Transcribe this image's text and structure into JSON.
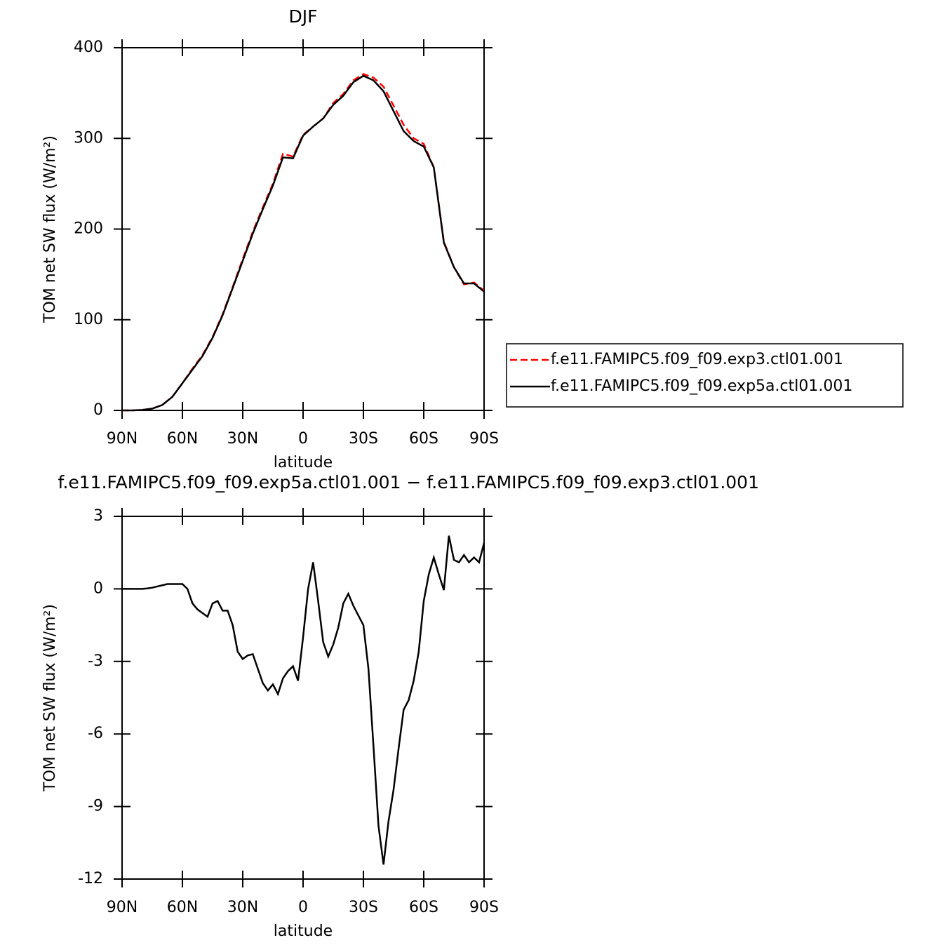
{
  "chart_data": [
    {
      "type": "line",
      "title": "DJF",
      "xlabel": "latitude",
      "ylabel": "TOM net SW flux (W/m²)",
      "xlim": [
        90,
        -90
      ],
      "xticks": [
        {
          "value": 90,
          "label": "90N"
        },
        {
          "value": 60,
          "label": "60N"
        },
        {
          "value": 30,
          "label": "30N"
        },
        0,
        {
          "value": -30,
          "label": "30S"
        },
        {
          "value": -60,
          "label": "60S"
        },
        {
          "value": -90,
          "label": "90S"
        }
      ],
      "ylim": [
        0,
        400
      ],
      "yticks": [
        0,
        100,
        200,
        300,
        400
      ],
      "legend": "right",
      "x": [
        90,
        85,
        80,
        75,
        70,
        65,
        60,
        55,
        50,
        45,
        40,
        35,
        30,
        25,
        20,
        15,
        10,
        5,
        0,
        -5,
        -10,
        -15,
        -20,
        -25,
        -30,
        -35,
        -40,
        -45,
        -50,
        -55,
        -60,
        -65,
        -70,
        -75,
        -80,
        -85,
        -90
      ],
      "series": [
        {
          "name": "f.e11.FAMIPC5.f09_f09.exp3.ctl01.001",
          "color": "#ff0000",
          "dash": true,
          "values": [
            0,
            0,
            0.5,
            2,
            6,
            15,
            30,
            46,
            61,
            81,
            106,
            136,
            167,
            197,
            224,
            250,
            283,
            280,
            304,
            313,
            322,
            339,
            349,
            364,
            371,
            367,
            357,
            336,
            315,
            300,
            294,
            268,
            186,
            158,
            139,
            141,
            132
          ]
        },
        {
          "name": "f.e11.FAMIPC5.f09_f09.exp5a.ctl01.001",
          "color": "#000000",
          "dash": false,
          "values": [
            0,
            0,
            0.5,
            2,
            6,
            15,
            30,
            45,
            60,
            80,
            105,
            135,
            165,
            195,
            222,
            248,
            279,
            278,
            303,
            313,
            322,
            337,
            347,
            362,
            369,
            364,
            352,
            330,
            308,
            297,
            291,
            268,
            185,
            158,
            140,
            140,
            131
          ]
        }
      ]
    },
    {
      "type": "line",
      "title": "f.e11.FAMIPC5.f09_f09.exp5a.ctl01.001 − f.e11.FAMIPC5.f09_f09.exp3.ctl01.001",
      "xlabel": "latitude",
      "ylabel": "TOM net SW flux (W/m²)",
      "xlim": [
        90,
        -90
      ],
      "xticks": [
        {
          "value": 90,
          "label": "90N"
        },
        {
          "value": 60,
          "label": "60N"
        },
        {
          "value": 30,
          "label": "30N"
        },
        0,
        {
          "value": -30,
          "label": "30S"
        },
        {
          "value": -60,
          "label": "60S"
        },
        {
          "value": -90,
          "label": "90S"
        }
      ],
      "ylim": [
        -12,
        3
      ],
      "yticks": [
        -12,
        -9,
        -6,
        -3,
        0,
        3
      ],
      "x": [
        90,
        87.5,
        85,
        82.5,
        80,
        77.5,
        75,
        72.5,
        70,
        67.5,
        65,
        62.5,
        60,
        57.5,
        55,
        52.5,
        50,
        47.5,
        45,
        42.5,
        40,
        37.5,
        35,
        32.5,
        30,
        27.5,
        25,
        22.5,
        20,
        17.5,
        15,
        12.5,
        10,
        7.5,
        5,
        2.5,
        0,
        -2.5,
        -5,
        -7.5,
        -10,
        -12.5,
        -15,
        -17.5,
        -20,
        -22.5,
        -25,
        -27.5,
        -30,
        -32.5,
        -35,
        -37.5,
        -40,
        -42.5,
        -45,
        -47.5,
        -50,
        -52.5,
        -55,
        -57.5,
        -60,
        -62.5,
        -65,
        -67.5,
        -70,
        -72.5,
        -75,
        -77.5,
        -80,
        -82.5,
        -85,
        -87.5,
        -90
      ],
      "color": "#000000",
      "values": [
        0,
        0,
        0,
        0,
        0,
        0.02,
        0.05,
        0.1,
        0.15,
        0.2,
        0.2,
        0.2,
        0.2,
        0,
        -0.6,
        -0.85,
        -1,
        -1.15,
        -0.6,
        -0.5,
        -0.9,
        -0.9,
        -1.5,
        -2.6,
        -2.9,
        -2.75,
        -2.7,
        -3.3,
        -3.9,
        -4.2,
        -3.95,
        -4.35,
        -3.7,
        -3.4,
        -3.2,
        -3.8,
        -2,
        0,
        1.1,
        -0.5,
        -2.2,
        -2.8,
        -2.3,
        -1.6,
        -0.6,
        -0.2,
        -0.7,
        -1.1,
        -1.5,
        -3.3,
        -6.5,
        -9.8,
        -11.4,
        -9.6,
        -8.3,
        -6.6,
        -5,
        -4.6,
        -3.8,
        -2.6,
        -0.5,
        0.6,
        1.3,
        0.6,
        -0.05,
        2.2,
        1.2,
        1.1,
        1.4,
        1.1,
        1.3,
        1.1,
        1.9
      ]
    }
  ]
}
